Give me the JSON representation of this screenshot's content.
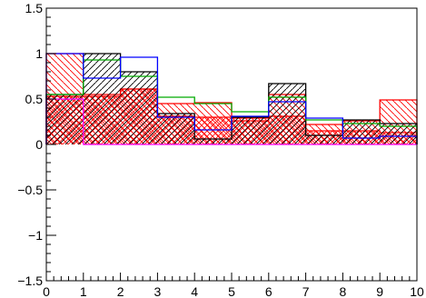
{
  "chart_data": {
    "type": "bar",
    "x_edges": [
      0,
      1,
      2,
      3,
      4,
      5,
      6,
      7,
      8,
      9,
      10
    ],
    "xlim": [
      0,
      10
    ],
    "ylim": [
      -1.5,
      1.5
    ],
    "xticks": [
      "0",
      "1",
      "2",
      "3",
      "4",
      "5",
      "6",
      "7",
      "8",
      "9",
      "10"
    ],
    "yticks": [
      {
        "value": 1.5,
        "label": "1.5"
      },
      {
        "value": 1,
        "label": "1"
      },
      {
        "value": 0.5,
        "label": "0.5"
      },
      {
        "value": 0,
        "label": "0"
      },
      {
        "value": -0.5,
        "label": "−0.5"
      },
      {
        "value": -1,
        "label": "−1"
      },
      {
        "value": -1.5,
        "label": "−1.5"
      }
    ],
    "series": [
      {
        "color": "#000000",
        "fill": "hatch-black",
        "values": [
          0.55,
          1.0,
          0.8,
          0.34,
          0.06,
          0.3,
          0.67,
          0.1,
          0.27,
          0.23
        ]
      },
      {
        "color": "#00aa00",
        "fill": "none",
        "values": [
          0.55,
          0.93,
          0.75,
          0.52,
          0.45,
          0.36,
          0.52,
          0.27,
          0.23,
          0.2
        ]
      },
      {
        "color": "#0000ff",
        "fill": "none",
        "values": [
          1.0,
          0.73,
          0.96,
          0.3,
          0.16,
          0.31,
          0.47,
          0.29,
          0.07,
          0.09
        ]
      },
      {
        "color": "#ff0000",
        "fill": "hatch-red",
        "values": [
          1.0,
          0.55,
          0.61,
          0.45,
          0.46,
          0.29,
          0.55,
          0.22,
          0.26,
          0.49
        ]
      },
      {
        "color": "#ff0000",
        "fill": "cross-red",
        "values": [
          0.53,
          0.53,
          0.61,
          0.31,
          0.3,
          0.26,
          0.31,
          0.15,
          0.15,
          0.13
        ]
      },
      {
        "color": "#ff00ff",
        "fill": "none",
        "values": [
          0.5,
          0,
          0,
          0,
          0,
          0,
          0,
          0,
          0,
          0
        ]
      }
    ],
    "grid": false
  }
}
